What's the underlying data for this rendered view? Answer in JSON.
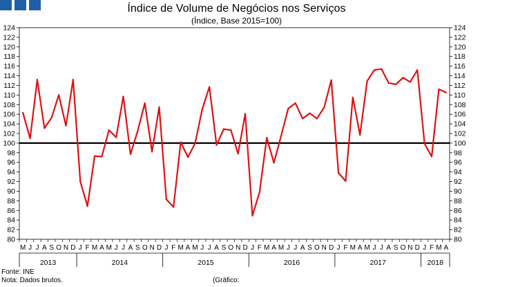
{
  "header": {
    "title": "Índice de Volume de Negócios nos Serviços",
    "subtitle": "(Índice, Base 2015=100)"
  },
  "footer": {
    "source": "Fonte: INE",
    "note": "Nota: Dados brutos.",
    "chart_ref": "(Gráfico:"
  },
  "colors": {
    "series": "#e01010",
    "reference": "#000000",
    "brand": "#1f5fa8"
  },
  "chart_data": {
    "type": "line",
    "title": "Índice de Volume de Negócios nos Serviços",
    "subtitle": "(Índice, Base 2015=100)",
    "ylim": [
      80,
      124
    ],
    "yticks": [
      80,
      82,
      84,
      86,
      88,
      90,
      92,
      94,
      96,
      98,
      100,
      102,
      104,
      106,
      108,
      110,
      112,
      114,
      116,
      118,
      120,
      122,
      124
    ],
    "reference_line": 100,
    "month_labels": [
      "M",
      "J",
      "J",
      "A",
      "S",
      "O",
      "N",
      "D",
      "J",
      "F",
      "M",
      "A",
      "M",
      "J",
      "J",
      "A",
      "S",
      "O",
      "N",
      "D",
      "J",
      "F",
      "M",
      "A",
      "M",
      "J",
      "J",
      "A",
      "S",
      "O",
      "N",
      "D",
      "J",
      "F",
      "M",
      "A",
      "M",
      "J",
      "J",
      "A",
      "S",
      "O",
      "N",
      "D",
      "J",
      "F",
      "M",
      "A",
      "M",
      "J",
      "J",
      "A",
      "S",
      "O",
      "N",
      "D",
      "J",
      "F",
      "M",
      "A"
    ],
    "years": [
      {
        "label": "2013",
        "start": 0,
        "count": 8
      },
      {
        "label": "2014",
        "start": 8,
        "count": 12
      },
      {
        "label": "2015",
        "start": 20,
        "count": 12
      },
      {
        "label": "2016",
        "start": 32,
        "count": 12
      },
      {
        "label": "2017",
        "start": 44,
        "count": 12
      },
      {
        "label": "2018",
        "start": 56,
        "count": 4
      }
    ],
    "series": [
      {
        "name": "Índice de Volume de Negócios nos Serviços",
        "values": [
          106.3,
          101.0,
          113.2,
          103.1,
          105.3,
          110.0,
          103.6,
          113.2,
          92.0,
          86.9,
          97.3,
          97.2,
          102.7,
          101.2,
          109.7,
          97.7,
          102.5,
          108.3,
          98.2,
          107.5,
          88.3,
          86.7,
          100.2,
          97.1,
          99.9,
          107.0,
          111.7,
          99.6,
          102.9,
          102.7,
          97.8,
          106.1,
          84.9,
          89.8,
          101.1,
          95.9,
          101.5,
          107.2,
          108.3,
          105.1,
          106.2,
          105.1,
          107.4,
          113.1,
          93.8,
          92.1,
          109.5,
          101.7,
          112.9,
          115.2,
          115.4,
          112.5,
          112.2,
          113.6,
          112.7,
          115.2,
          99.9,
          97.2,
          111.2,
          110.5
        ]
      }
    ]
  }
}
